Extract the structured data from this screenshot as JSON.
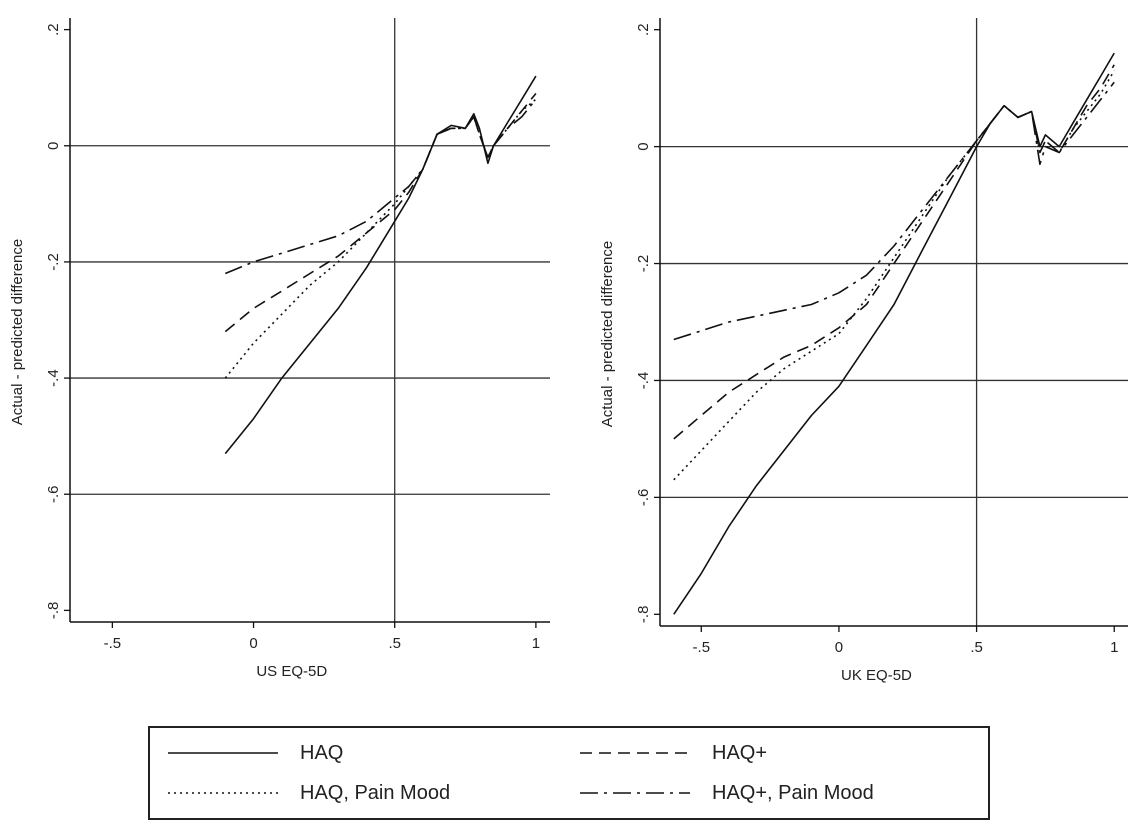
{
  "chart_data": [
    {
      "type": "line",
      "title": "",
      "xlabel": "US EQ-5D",
      "ylabel": "Actual - predicted difference",
      "xlim": [
        -0.65,
        1.05
      ],
      "ylim": [
        -0.82,
        0.22
      ],
      "xticks": [
        -0.5,
        0,
        0.5,
        1
      ],
      "xtick_labels": [
        "-.5",
        "0",
        ".5",
        "1"
      ],
      "yticks": [
        -0.8,
        -0.6,
        -0.4,
        -0.2,
        0,
        0.2
      ],
      "ytick_labels": [
        "-.8",
        "-.6",
        "-.4",
        "-.2",
        "0",
        ".2"
      ],
      "hlines": [
        0,
        -0.2,
        -0.4,
        -0.6
      ],
      "vline": 0.5,
      "grid": "horizontal reference lines",
      "series": [
        {
          "name": "HAQ",
          "style": "solid",
          "x": [
            -0.1,
            0.0,
            0.1,
            0.2,
            0.3,
            0.4,
            0.5,
            0.55,
            0.6,
            0.65,
            0.7,
            0.75,
            0.78,
            0.8,
            0.83,
            0.85,
            0.9,
            0.95,
            1.0
          ],
          "y": [
            -0.53,
            -0.47,
            -0.4,
            -0.34,
            -0.28,
            -0.21,
            -0.13,
            -0.09,
            -0.04,
            0.02,
            0.035,
            0.03,
            0.055,
            0.03,
            -0.03,
            0.0,
            0.04,
            0.08,
            0.12
          ]
        },
        {
          "name": "HAQ+",
          "style": "dashed",
          "x": [
            -0.1,
            0.0,
            0.1,
            0.2,
            0.3,
            0.4,
            0.5,
            0.55,
            0.6,
            0.65,
            0.7,
            0.75,
            0.78,
            0.8,
            0.83,
            0.85,
            0.9,
            0.95,
            1.0
          ],
          "y": [
            -0.32,
            -0.28,
            -0.25,
            -0.22,
            -0.19,
            -0.15,
            -0.11,
            -0.08,
            -0.04,
            0.02,
            0.03,
            0.03,
            0.05,
            0.02,
            -0.02,
            0.0,
            0.03,
            0.06,
            0.09
          ]
        },
        {
          "name": "HAQ, Pain Mood",
          "style": "dotted",
          "x": [
            -0.1,
            0.0,
            0.1,
            0.2,
            0.3,
            0.4,
            0.5,
            0.55,
            0.6,
            0.65,
            0.7,
            0.75,
            0.78,
            0.8,
            0.83,
            0.85,
            0.9,
            0.95,
            1.0
          ],
          "y": [
            -0.4,
            -0.34,
            -0.29,
            -0.24,
            -0.2,
            -0.15,
            -0.1,
            -0.07,
            -0.04,
            0.02,
            0.03,
            0.03,
            0.05,
            0.02,
            -0.02,
            0.0,
            0.03,
            0.06,
            0.08
          ]
        },
        {
          "name": "HAQ+, Pain Mood",
          "style": "dashdot",
          "x": [
            -0.1,
            0.0,
            0.1,
            0.2,
            0.3,
            0.4,
            0.5,
            0.55,
            0.6,
            0.65,
            0.7,
            0.75,
            0.78,
            0.8,
            0.83,
            0.85,
            0.9,
            0.95,
            1.0
          ],
          "y": [
            -0.22,
            -0.2,
            -0.185,
            -0.17,
            -0.155,
            -0.13,
            -0.09,
            -0.07,
            -0.04,
            0.02,
            0.03,
            0.03,
            0.05,
            0.02,
            -0.02,
            0.0,
            0.03,
            0.05,
            0.08
          ]
        }
      ]
    },
    {
      "type": "line",
      "title": "",
      "xlabel": "UK EQ-5D",
      "ylabel": "Actual - predicted difference",
      "xlim": [
        -0.65,
        1.05
      ],
      "ylim": [
        -0.82,
        0.22
      ],
      "xticks": [
        -0.5,
        0,
        0.5,
        1
      ],
      "xtick_labels": [
        "-.5",
        "0",
        ".5",
        "1"
      ],
      "yticks": [
        -0.8,
        -0.6,
        -0.4,
        -0.2,
        0,
        0.2
      ],
      "ytick_labels": [
        "-.8",
        "-.6",
        "-.4",
        "-.2",
        "0",
        ".2"
      ],
      "hlines": [
        0,
        -0.2,
        -0.4,
        -0.6
      ],
      "vline": 0.5,
      "grid": "horizontal reference lines",
      "series": [
        {
          "name": "HAQ",
          "style": "solid",
          "x": [
            -0.6,
            -0.5,
            -0.4,
            -0.3,
            -0.2,
            -0.1,
            0.0,
            0.1,
            0.2,
            0.3,
            0.4,
            0.5,
            0.55,
            0.6,
            0.65,
            0.7,
            0.73,
            0.75,
            0.8,
            0.85,
            0.9,
            0.95,
            1.0
          ],
          "y": [
            -0.8,
            -0.73,
            -0.65,
            -0.58,
            -0.52,
            -0.46,
            -0.41,
            -0.34,
            -0.27,
            -0.18,
            -0.09,
            0.0,
            0.04,
            0.07,
            0.05,
            0.06,
            0.0,
            0.02,
            0.0,
            0.04,
            0.08,
            0.12,
            0.16
          ]
        },
        {
          "name": "HAQ+",
          "style": "dashed",
          "x": [
            -0.6,
            -0.5,
            -0.4,
            -0.3,
            -0.2,
            -0.1,
            0.0,
            0.1,
            0.2,
            0.3,
            0.4,
            0.5,
            0.55,
            0.6,
            0.65,
            0.7,
            0.73,
            0.75,
            0.8,
            0.85,
            0.9,
            0.95,
            1.0
          ],
          "y": [
            -0.5,
            -0.46,
            -0.42,
            -0.39,
            -0.36,
            -0.34,
            -0.31,
            -0.27,
            -0.2,
            -0.13,
            -0.06,
            0.01,
            0.04,
            0.07,
            0.05,
            0.06,
            -0.01,
            0.01,
            -0.01,
            0.03,
            0.07,
            0.1,
            0.14
          ]
        },
        {
          "name": "HAQ, Pain Mood",
          "style": "dotted",
          "x": [
            -0.6,
            -0.5,
            -0.4,
            -0.3,
            -0.2,
            -0.1,
            0.0,
            0.1,
            0.2,
            0.3,
            0.4,
            0.5,
            0.55,
            0.6,
            0.65,
            0.7,
            0.73,
            0.75,
            0.8,
            0.85,
            0.9,
            0.95,
            1.0
          ],
          "y": [
            -0.57,
            -0.52,
            -0.47,
            -0.42,
            -0.38,
            -0.35,
            -0.32,
            -0.26,
            -0.19,
            -0.12,
            -0.05,
            0.01,
            0.04,
            0.07,
            0.05,
            0.06,
            -0.01,
            0.01,
            -0.01,
            0.03,
            0.06,
            0.09,
            0.13
          ]
        },
        {
          "name": "HAQ+, Pain Mood",
          "style": "dashdot",
          "x": [
            -0.6,
            -0.5,
            -0.4,
            -0.3,
            -0.2,
            -0.1,
            0.0,
            0.1,
            0.2,
            0.3,
            0.4,
            0.5,
            0.55,
            0.6,
            0.65,
            0.7,
            0.73,
            0.75,
            0.8,
            0.85,
            0.9,
            0.95,
            1.0
          ],
          "y": [
            -0.33,
            -0.315,
            -0.3,
            -0.29,
            -0.28,
            -0.27,
            -0.25,
            -0.22,
            -0.17,
            -0.11,
            -0.05,
            0.01,
            0.04,
            0.07,
            0.05,
            0.06,
            -0.03,
            0.0,
            -0.01,
            0.02,
            0.05,
            0.08,
            0.11
          ]
        }
      ]
    }
  ],
  "legend": {
    "placement": "bottom",
    "items": [
      {
        "label": "HAQ",
        "style": "solid"
      },
      {
        "label": "HAQ+",
        "style": "dashed"
      },
      {
        "label": "HAQ, Pain Mood",
        "style": "dotted"
      },
      {
        "label": "HAQ+, Pain Mood",
        "style": "dashdot"
      }
    ]
  }
}
